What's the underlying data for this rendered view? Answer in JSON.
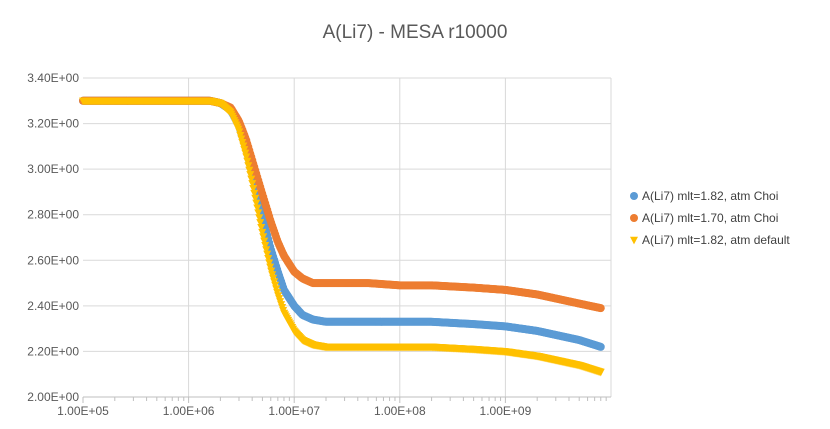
{
  "chart_data": {
    "type": "scatter",
    "title": "A(Li7) - MESA r10000",
    "xlabel": "",
    "ylabel": "",
    "x_scale": "log",
    "xlim": [
      100000,
      10000000000
    ],
    "ylim": [
      2.0,
      3.4
    ],
    "x_ticks": [
      100000,
      1000000,
      10000000,
      100000000,
      1000000000
    ],
    "x_tick_labels": [
      "1.00E+05",
      "1.00E+06",
      "1.00E+07",
      "1.00E+08",
      "1.00E+09"
    ],
    "y_ticks": [
      2.0,
      2.2,
      2.4,
      2.6,
      2.8,
      3.0,
      3.2,
      3.4
    ],
    "y_tick_labels": [
      "2.00E+00",
      "2.20E+00",
      "2.40E+00",
      "2.60E+00",
      "2.80E+00",
      "3.00E+00",
      "3.20E+00",
      "3.40E+00"
    ],
    "grid": "major",
    "legend": "right",
    "series": [
      {
        "name": "A(Li7) mlt=1.82, atm Choi",
        "color": "#5b9bd5",
        "marker": "circle",
        "x": [
          100000,
          1000000,
          1600000,
          2000000,
          2500000,
          3000000,
          3500000,
          4000000,
          5000000,
          6000000,
          7000000,
          8000000,
          10000000,
          12000000,
          15000000,
          20000000,
          30000000,
          50000000,
          100000000,
          200000000,
          500000000,
          1000000000,
          2000000000,
          5000000000,
          8000000000
        ],
        "y": [
          3.3,
          3.3,
          3.3,
          3.29,
          3.26,
          3.19,
          3.09,
          2.98,
          2.79,
          2.65,
          2.55,
          2.47,
          2.4,
          2.36,
          2.34,
          2.33,
          2.33,
          2.33,
          2.33,
          2.33,
          2.32,
          2.31,
          2.29,
          2.25,
          2.22
        ]
      },
      {
        "name": "A(Li7) mlt=1.70, atm Choi",
        "color": "#ed7d31",
        "marker": "circle",
        "x": [
          100000,
          1000000,
          1600000,
          2000000,
          2500000,
          3000000,
          3500000,
          4000000,
          5000000,
          6000000,
          7000000,
          8000000,
          10000000,
          12000000,
          15000000,
          20000000,
          30000000,
          50000000,
          100000000,
          200000000,
          500000000,
          1000000000,
          2000000000,
          5000000000,
          8000000000
        ],
        "y": [
          3.3,
          3.3,
          3.3,
          3.29,
          3.27,
          3.21,
          3.13,
          3.04,
          2.89,
          2.77,
          2.68,
          2.62,
          2.55,
          2.52,
          2.5,
          2.5,
          2.5,
          2.5,
          2.49,
          2.49,
          2.48,
          2.47,
          2.45,
          2.41,
          2.39
        ]
      },
      {
        "name": "A(Li7) mlt=1.82, atm default",
        "color": "#ffc000",
        "marker": "triangle-down",
        "x": [
          100000,
          1000000,
          1600000,
          2000000,
          2500000,
          3000000,
          3500000,
          4000000,
          5000000,
          6000000,
          7000000,
          8000000,
          10000000,
          12000000,
          15000000,
          20000000,
          30000000,
          50000000,
          100000000,
          200000000,
          500000000,
          1000000000,
          2000000000,
          5000000000,
          8000000000
        ],
        "y": [
          3.3,
          3.3,
          3.3,
          3.29,
          3.25,
          3.17,
          3.06,
          2.94,
          2.72,
          2.56,
          2.45,
          2.37,
          2.29,
          2.25,
          2.23,
          2.22,
          2.22,
          2.22,
          2.22,
          2.22,
          2.21,
          2.2,
          2.18,
          2.14,
          2.11
        ]
      }
    ]
  }
}
